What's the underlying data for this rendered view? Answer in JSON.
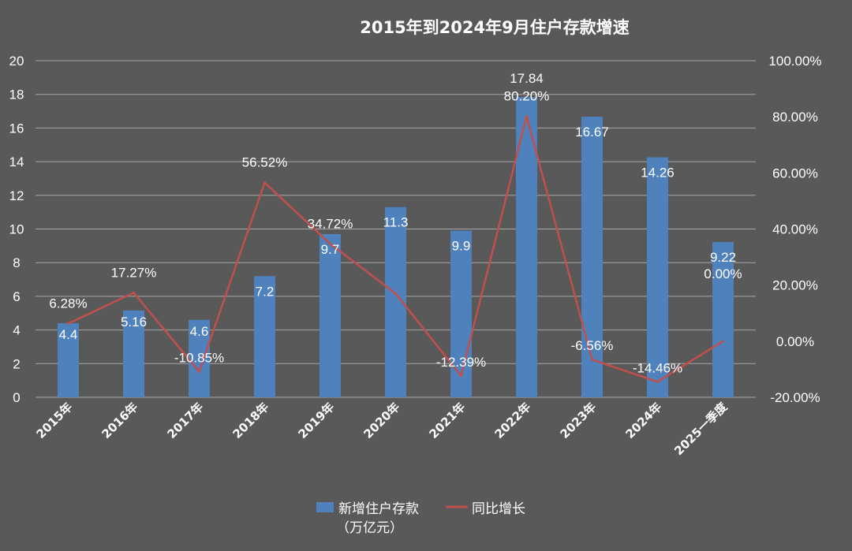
{
  "chart_data": {
    "type": "bar+line",
    "title": "2015年到2024年9月住户存款增速",
    "categories": [
      "2015年",
      "2016年",
      "2017年",
      "2018年",
      "2019年",
      "2020年",
      "2021年",
      "2022年",
      "2023年",
      "2024年",
      "2025一季度"
    ],
    "series": [
      {
        "name": "新增住户存款（万亿元）",
        "type": "bar",
        "axis": "left",
        "color": "#4f81bd",
        "values": [
          4.4,
          5.16,
          4.6,
          7.2,
          9.7,
          11.3,
          9.9,
          17.84,
          16.67,
          14.26,
          9.22
        ],
        "labels": [
          "4.4",
          "5.16",
          "4.6",
          "7.2",
          "9.7",
          "11.3",
          "9.9",
          "17.84",
          "16.67",
          "14.26",
          "9.22"
        ]
      },
      {
        "name": "同比增长",
        "type": "line",
        "axis": "right",
        "color": "#c0504d",
        "values": [
          6.28,
          17.27,
          -10.85,
          56.52,
          34.72,
          17.0,
          -12.39,
          80.2,
          -6.56,
          -14.46,
          0.0
        ],
        "labels": [
          "6.28%",
          "17.27%",
          "-10.85%",
          "56.52%",
          "34.72%",
          "",
          "-12.39%",
          "80.20%",
          "-6.56%",
          "-14.46%",
          "0.00%"
        ]
      }
    ],
    "y_left": {
      "min": 0,
      "max": 20,
      "step": 2,
      "ticks": [
        "0",
        "2",
        "4",
        "6",
        "8",
        "10",
        "12",
        "14",
        "16",
        "18",
        "20"
      ]
    },
    "y_right": {
      "min": -20,
      "max": 100,
      "step": 20,
      "ticks": [
        "-20.00%",
        "0.00%",
        "20.00%",
        "40.00%",
        "60.00%",
        "80.00%",
        "100.00%"
      ]
    },
    "grid": true,
    "legend_position": "bottom",
    "legend": {
      "bar_line1": "新增住户存款",
      "bar_line2": "（万亿元）",
      "line": "同比增长"
    },
    "colors": {
      "background": "#595959",
      "grid": "#a6a6a6",
      "bar": "#4f81bd",
      "line": "#c0504d",
      "text": "#ffffff"
    }
  }
}
